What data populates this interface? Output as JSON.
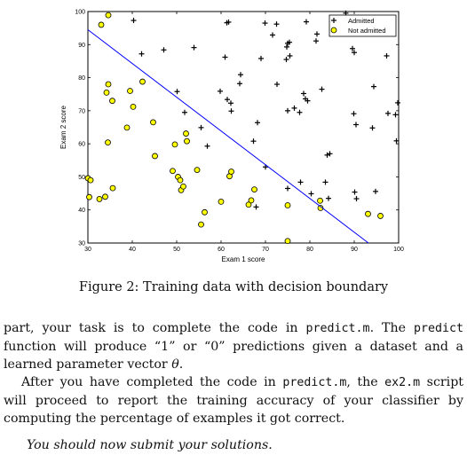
{
  "chart_data": {
    "type": "scatter",
    "xlabel": "Exam 1 score",
    "ylabel": "Exam 2 score",
    "xlim": [
      30,
      100
    ],
    "ylim": [
      30,
      100
    ],
    "xticks": [
      30,
      40,
      50,
      60,
      70,
      80,
      90,
      100
    ],
    "yticks": [
      30,
      40,
      50,
      60,
      70,
      80,
      90,
      100
    ],
    "legend_position": "top-right",
    "series": [
      {
        "name": "Admitted",
        "marker": "plus",
        "color": "#000000",
        "points": [
          [
            40.3,
            97.3
          ],
          [
            42.1,
            87.2
          ],
          [
            47.1,
            88.4
          ],
          [
            53.9,
            89.1
          ],
          [
            61.3,
            96.6
          ],
          [
            61.7,
            96.8
          ],
          [
            60.9,
            86.2
          ],
          [
            64.4,
            80.9
          ],
          [
            64.2,
            78.2
          ],
          [
            59.8,
            75.9
          ],
          [
            50.1,
            75.8
          ],
          [
            61.4,
            73.4
          ],
          [
            62.2,
            72.3
          ],
          [
            69.9,
            96.5
          ],
          [
            71.6,
            92.9
          ],
          [
            72.5,
            96.2
          ],
          [
            69.0,
            85.8
          ],
          [
            75.0,
            90.4
          ],
          [
            75.4,
            90.7
          ],
          [
            74.8,
            89.3
          ],
          [
            75.5,
            86.6
          ],
          [
            74.7,
            85.5
          ],
          [
            72.6,
            78.0
          ],
          [
            79.2,
            96.9
          ],
          [
            79.0,
            73.6
          ],
          [
            79.5,
            73.0
          ],
          [
            82.7,
            76.5
          ],
          [
            81.4,
            91.1
          ],
          [
            81.6,
            93.2
          ],
          [
            78.6,
            75.2
          ],
          [
            76.5,
            70.8
          ],
          [
            77.7,
            69.5
          ],
          [
            75.0,
            70.0
          ],
          [
            68.2,
            66.4
          ],
          [
            83.9,
            56.6
          ],
          [
            84.5,
            57.0
          ],
          [
            88.1,
            99.5
          ],
          [
            90.0,
            87.6
          ],
          [
            89.6,
            88.8
          ],
          [
            89.9,
            69.1
          ],
          [
            90.4,
            65.8
          ],
          [
            94.4,
            77.3
          ],
          [
            94.1,
            64.8
          ],
          [
            97.3,
            86.6
          ],
          [
            97.6,
            69.2
          ],
          [
            99.3,
            68.8
          ],
          [
            99.8,
            72.4
          ],
          [
            99.5,
            60.9
          ],
          [
            62.3,
            69.9
          ],
          [
            51.8,
            69.5
          ],
          [
            55.5,
            64.9
          ],
          [
            56.9,
            59.3
          ],
          [
            67.3,
            60.8
          ],
          [
            70.0,
            53.0
          ],
          [
            77.9,
            48.4
          ],
          [
            80.3,
            44.9
          ],
          [
            84.2,
            43.5
          ],
          [
            83.5,
            48.4
          ],
          [
            90.1,
            45.4
          ],
          [
            90.5,
            43.4
          ],
          [
            94.8,
            45.6
          ],
          [
            75.0,
            46.5
          ],
          [
            67.9,
            40.9
          ],
          [
            82.4,
            42.7
          ]
        ]
      },
      {
        "name": "Not admitted",
        "marker": "circle",
        "color": "#ffff00",
        "points": [
          [
            34.6,
            98.9
          ],
          [
            33.0,
            96.0
          ],
          [
            30.0,
            49.6
          ],
          [
            30.3,
            43.9
          ],
          [
            30.6,
            49.0
          ],
          [
            32.6,
            43.3
          ],
          [
            33.9,
            44.0
          ],
          [
            34.5,
            60.4
          ],
          [
            34.6,
            78.0
          ],
          [
            34.2,
            75.5
          ],
          [
            35.5,
            73.0
          ],
          [
            35.6,
            46.6
          ],
          [
            38.8,
            64.9
          ],
          [
            39.5,
            76.0
          ],
          [
            40.2,
            71.2
          ],
          [
            42.3,
            78.8
          ],
          [
            44.7,
            66.5
          ],
          [
            45.1,
            56.3
          ],
          [
            49.1,
            51.8
          ],
          [
            50.3,
            50.0
          ],
          [
            50.8,
            49.0
          ],
          [
            49.6,
            59.8
          ],
          [
            51.0,
            46.0
          ],
          [
            51.5,
            47.1
          ],
          [
            52.1,
            63.1
          ],
          [
            52.3,
            60.8
          ],
          [
            54.6,
            52.1
          ],
          [
            55.5,
            35.6
          ],
          [
            56.3,
            39.3
          ],
          [
            60.0,
            42.5
          ],
          [
            61.9,
            50.2
          ],
          [
            62.3,
            51.6
          ],
          [
            66.2,
            41.6
          ],
          [
            66.8,
            42.9
          ],
          [
            67.5,
            46.2
          ],
          [
            75.0,
            41.4
          ],
          [
            75.0,
            30.6
          ],
          [
            82.3,
            42.8
          ],
          [
            82.4,
            40.6
          ],
          [
            93.1,
            38.8
          ],
          [
            95.9,
            38.2
          ]
        ]
      }
    ],
    "decision_boundary": {
      "name": "Decision boundary",
      "color": "#0000ff",
      "x": [
        30,
        93.2
      ],
      "y": [
        94.5,
        30
      ]
    }
  },
  "caption": "Figure 2: Training data with decision boundary",
  "paragraph1": {
    "part1": "part, your task is to complete the code in ",
    "code1": "predict.m",
    "part2": ". The ",
    "code2": "predict",
    "part3": " function will produce “1” or “0” predictions given a dataset and a learned parameter vector ",
    "theta": "θ",
    "part4": "."
  },
  "paragraph2": {
    "part1": "After you have completed the code in ",
    "code1": "predict.m",
    "part2": ", the ",
    "code2": "ex2.m",
    "part3": " script will proceed to report the training accuracy of your classifier by computing the percentage of examples it got correct."
  },
  "submit_note": "You should now submit your solutions."
}
